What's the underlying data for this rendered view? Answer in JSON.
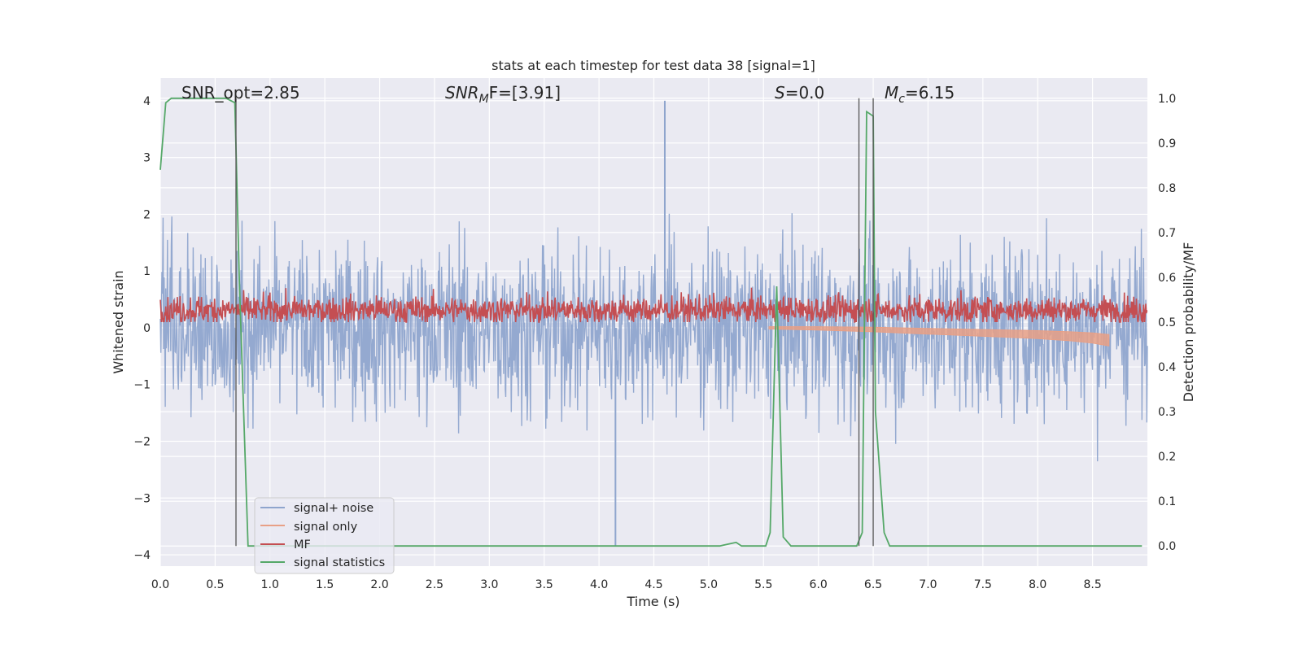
{
  "chart_data": {
    "type": "line",
    "title": "stats at each timestep for test data 38 [signal=1]",
    "xlabel": "Time (s)",
    "ylabel_left": "Whitened strain",
    "ylabel_right": "Detection probability/MF",
    "xlim": [
      0,
      9.0
    ],
    "ylim_left": [
      -4.2,
      4.4
    ],
    "ylim_right": [
      -0.045,
      1.045
    ],
    "x_ticks": [
      "0.0",
      "0.5",
      "1.0",
      "1.5",
      "2.0",
      "2.5",
      "3.0",
      "3.5",
      "4.0",
      "4.5",
      "5.0",
      "5.5",
      "6.0",
      "6.5",
      "7.0",
      "7.5",
      "8.0",
      "8.5"
    ],
    "y_ticks_left": [
      "4",
      "3",
      "2",
      "1",
      "0",
      "−1",
      "−2",
      "−3",
      "−4"
    ],
    "y_ticks_right": [
      "1.0",
      "0.9",
      "0.8",
      "0.7",
      "0.6",
      "0.5",
      "0.4",
      "0.3",
      "0.2",
      "0.1",
      "0.0"
    ],
    "grid": true,
    "legend_position": "lower-left",
    "series": [
      {
        "name": "signal+ noise",
        "axis": "left",
        "color": "#8fa5cd",
        "note_values": "noise band approx ±1.5 with peaks to about ±3; extreme values near 4.0 at t≈4.6 and −3.85 at t≈4.15"
      },
      {
        "name": "signal only",
        "axis": "left",
        "color": "#e8a086",
        "x": [
          5.55,
          6.0,
          6.5,
          7.0,
          7.5,
          8.0,
          8.3,
          8.5,
          8.65
        ],
        "y": [
          0.0,
          -0.01,
          -0.03,
          -0.06,
          -0.09,
          -0.12,
          -0.15,
          -0.18,
          -0.22
        ]
      },
      {
        "name": "MF",
        "axis": "right",
        "color": "#c44e52",
        "note_values": "fluctuates between about 0.50 and 0.60 across the full time range"
      },
      {
        "name": "signal statistics",
        "axis": "right",
        "color": "#55a868",
        "x": [
          0.0,
          0.05,
          0.1,
          0.6,
          0.68,
          0.72,
          0.8,
          0.82,
          5.1,
          5.25,
          5.3,
          5.52,
          5.56,
          5.62,
          5.68,
          5.75,
          6.0,
          6.35,
          6.4,
          6.44,
          6.5,
          6.52,
          6.6,
          6.65,
          6.8,
          8.95
        ],
        "y": [
          0.84,
          0.99,
          1.0,
          1.0,
          0.99,
          0.6,
          0.0,
          0.0,
          0.0,
          0.008,
          0.0,
          0.0,
          0.03,
          0.58,
          0.02,
          0.0,
          0.0,
          0.0,
          0.03,
          0.97,
          0.96,
          0.3,
          0.03,
          0.0,
          0.0,
          0.0
        ]
      }
    ],
    "vertical_markers_x": [
      0.69,
      6.37,
      6.5
    ],
    "annotations": [
      {
        "label": "SNR_opt=2.85"
      },
      {
        "label": "SNR",
        "sub": "M",
        "suffix": "F=[3.91]"
      },
      {
        "label": "S",
        "suffix": "=0.0"
      },
      {
        "label": "M",
        "sub": "c",
        "suffix": "=6.15"
      }
    ]
  }
}
